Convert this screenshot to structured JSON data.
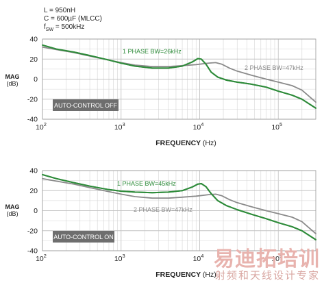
{
  "conditions": {
    "inductance": "L = 950nH",
    "capacitance": "C = 600µF (MLCC)",
    "fsw_prefix": "f",
    "fsw_sub": "SW",
    "fsw_value": " = 500kHz"
  },
  "watermark": {
    "main": "易迪拓培训",
    "sub": "射频和天线设计专家"
  },
  "colors": {
    "one_phase": "#2e8b3a",
    "two_phase": "#8a8a8a",
    "badge": "#6e6e6e",
    "grid": "#d4d4d4"
  },
  "chart_data": [
    {
      "type": "line",
      "x_scale": "log",
      "xlim": [
        100,
        300000
      ],
      "ylim": [
        -40,
        40
      ],
      "yticks": [
        -40,
        -20,
        0,
        20,
        40
      ],
      "xticks": [
        {
          "value": 100,
          "label": "10",
          "exp": "2"
        },
        {
          "value": 1000,
          "label": "10",
          "exp": "3"
        },
        {
          "value": 10000,
          "label": "10",
          "exp": "4"
        },
        {
          "value": 100000,
          "label": "10",
          "exp": "5"
        }
      ],
      "xlabel": "FREQUENCY",
      "xlabel_unit": "(Hz)",
      "ylabel": "MAG",
      "ylabel_unit": "(dB)",
      "badge": "AUTO-CONTROL OFF",
      "series": [
        {
          "name": "1 PHASE BW=26kHz",
          "color": "#2e8b3a",
          "x": [
            100,
            150,
            250,
            400,
            700,
            1000,
            1500,
            2500,
            4000,
            6000,
            8000,
            9500,
            10500,
            12000,
            14000,
            17000,
            22000,
            30000,
            45000,
            70000,
            100000,
            150000,
            200000,
            300000
          ],
          "y": [
            34,
            30,
            27,
            23.5,
            19,
            16,
            13,
            11,
            11,
            13,
            17,
            20.5,
            20,
            15,
            7,
            2,
            -1,
            -3,
            -5,
            -8,
            -12,
            -16,
            -20,
            -29
          ]
        },
        {
          "name": "2 PHASE BW=47kHz",
          "color": "#8a8a8a",
          "x": [
            100,
            150,
            250,
            400,
            700,
            1000,
            1500,
            2500,
            4000,
            6000,
            9000,
            13000,
            16000,
            19000,
            24000,
            30000,
            45000,
            70000,
            100000,
            150000,
            200000,
            300000
          ],
          "y": [
            32,
            29.5,
            26.5,
            23,
            19,
            16.5,
            14,
            12.5,
            12.5,
            13.5,
            14.5,
            16,
            16.5,
            15,
            11,
            8,
            4,
            0,
            -3,
            -6.5,
            -11,
            -23
          ]
        }
      ]
    },
    {
      "type": "line",
      "x_scale": "log",
      "xlim": [
        100,
        300000
      ],
      "ylim": [
        -40,
        40
      ],
      "yticks": [
        -40,
        -20,
        0,
        20,
        40
      ],
      "xticks": [
        {
          "value": 100,
          "label": "10",
          "exp": "2"
        },
        {
          "value": 1000,
          "label": "10",
          "exp": "3"
        },
        {
          "value": 10000,
          "label": "10",
          "exp": "4"
        },
        {
          "value": 100000,
          "label": "10",
          "exp": "5"
        }
      ],
      "xlabel": "FREQUENCY",
      "xlabel_unit": "(Hz)",
      "ylabel": "MAG",
      "ylabel_unit": "(dB)",
      "badge": "AUTO-CONTROL ON",
      "series": [
        {
          "name": "1 PHASE BW=45kHz",
          "color": "#2e8b3a",
          "x": [
            100,
            150,
            250,
            400,
            700,
            1000,
            1500,
            2500,
            4000,
            6000,
            8000,
            9500,
            10500,
            12000,
            14000,
            17000,
            22000,
            30000,
            45000,
            70000,
            100000,
            150000,
            200000,
            300000
          ],
          "y": [
            36,
            32,
            28,
            24.5,
            21,
            19.5,
            18.5,
            18,
            18.5,
            20,
            23.5,
            26.5,
            27,
            24,
            17,
            10,
            5,
            1,
            -3.5,
            -8,
            -12,
            -16,
            -20,
            -29
          ]
        },
        {
          "name": "2 PHASE BW=47kHz",
          "color": "#8a8a8a",
          "x": [
            100,
            150,
            250,
            400,
            700,
            1000,
            1500,
            2500,
            4000,
            6000,
            9000,
            13000,
            16000,
            19000,
            24000,
            30000,
            45000,
            70000,
            100000,
            150000,
            200000,
            300000
          ],
          "y": [
            32,
            29.5,
            26.5,
            23,
            19,
            16.5,
            14,
            12.5,
            12.5,
            13.5,
            14.5,
            16,
            16.5,
            15,
            11,
            8,
            4,
            0,
            -3,
            -6.5,
            -11,
            -23
          ]
        }
      ]
    }
  ]
}
